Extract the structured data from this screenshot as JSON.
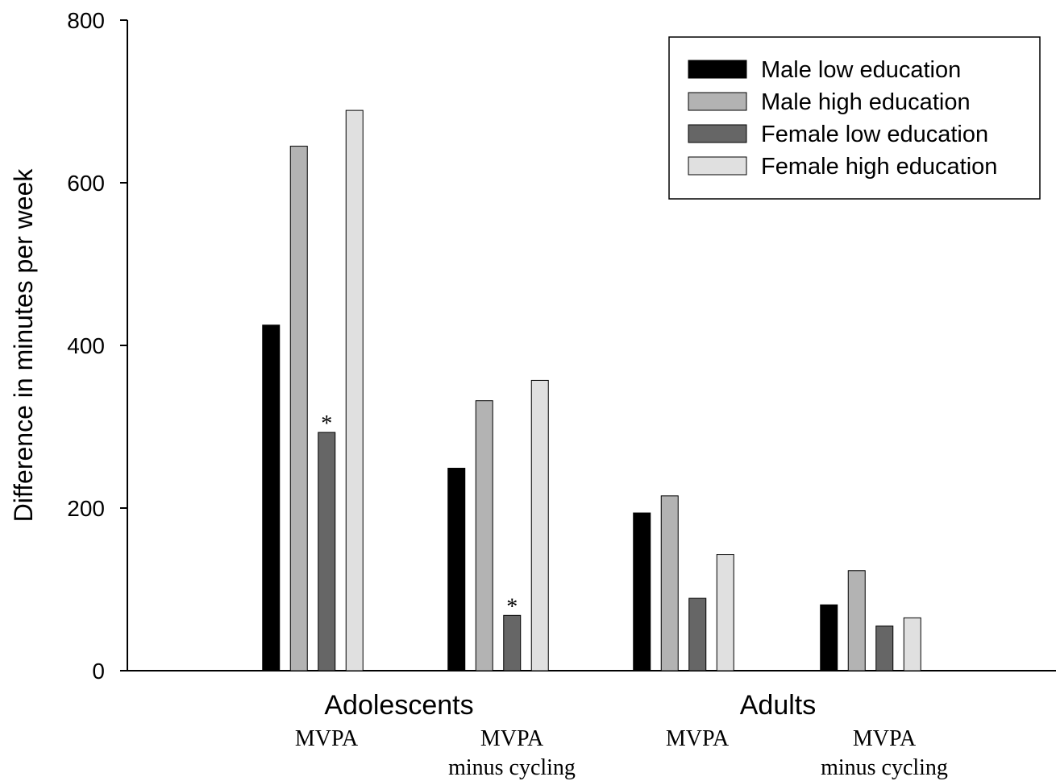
{
  "chart_data": {
    "type": "bar",
    "ylabel": "Difference in minutes per week",
    "ylim": [
      0,
      800
    ],
    "yticks": [
      0,
      200,
      400,
      600,
      800
    ],
    "groups": [
      {
        "label": "Adolescents",
        "subcategories": [
          "MVPA",
          "MVPA minus cycling"
        ]
      },
      {
        "label": "Adults",
        "subcategories": [
          "MVPA",
          "MVPA minus cycling"
        ]
      }
    ],
    "categories": [
      {
        "group": "Adolescents",
        "line1": "MVPA",
        "line2": ""
      },
      {
        "group": "Adolescents",
        "line1": "MVPA",
        "line2": "minus cycling"
      },
      {
        "group": "Adults",
        "line1": "MVPA",
        "line2": ""
      },
      {
        "group": "Adults",
        "line1": "MVPA",
        "line2": "minus cycling"
      }
    ],
    "series": [
      {
        "name": "Male low education",
        "color": "#000000",
        "values": [
          425,
          249,
          194,
          81
        ]
      },
      {
        "name": "Male high education",
        "color": "#b3b3b3",
        "values": [
          645,
          332,
          215,
          123
        ]
      },
      {
        "name": "Female low education",
        "color": "#666666",
        "values": [
          293,
          68,
          89,
          55
        ]
      },
      {
        "name": "Female high education",
        "color": "#e0e0e0",
        "values": [
          689,
          357,
          143,
          65
        ]
      }
    ],
    "annotations": [
      {
        "text": "*",
        "series": 2,
        "category": 0
      },
      {
        "text": "*",
        "series": 2,
        "category": 1
      }
    ],
    "legend": {
      "placement": "top-right"
    },
    "grid": false
  }
}
